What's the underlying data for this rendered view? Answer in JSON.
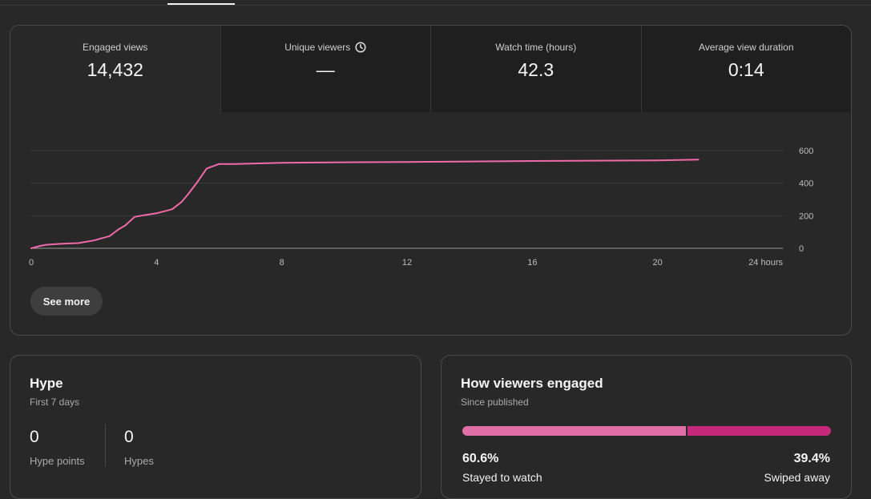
{
  "metrics": [
    {
      "label": "Engaged views",
      "value": "14,432"
    },
    {
      "label": "Unique viewers",
      "value": "—",
      "icon": "clock-icon"
    },
    {
      "label": "Watch time (hours)",
      "value": "42.3"
    },
    {
      "label": "Average view duration",
      "value": "0:14"
    }
  ],
  "chart_data": {
    "type": "line",
    "x_ticks": [
      "0",
      "4",
      "8",
      "12",
      "16",
      "20",
      "24 hours"
    ],
    "y_ticks": [
      "600",
      "400",
      "200",
      "0"
    ],
    "xlim": [
      0,
      24
    ],
    "ylim": [
      0,
      600
    ],
    "grid": true,
    "series": [
      {
        "color": "#f06aa9",
        "x": [
          0,
          0.3,
          0.5,
          1,
          1.5,
          2,
          2.5,
          2.8,
          3,
          3.3,
          3.6,
          4,
          4.5,
          4.8,
          5,
          5.3,
          5.6,
          6,
          6.5,
          7,
          8,
          10,
          12,
          14,
          16,
          18,
          20,
          21.3
        ],
        "y": [
          0,
          15,
          22,
          28,
          32,
          48,
          75,
          118,
          140,
          193,
          203,
          215,
          240,
          285,
          330,
          405,
          490,
          518,
          518,
          520,
          525,
          528,
          530,
          533,
          536,
          538,
          540,
          545
        ]
      }
    ]
  },
  "see_more_label": "See more",
  "hype": {
    "title": "Hype",
    "subtitle": "First 7 days",
    "stats": [
      {
        "value": "0",
        "label": "Hype points"
      },
      {
        "value": "0",
        "label": "Hypes"
      }
    ]
  },
  "engagement": {
    "title": "How viewers engaged",
    "subtitle": "Since published",
    "stayed_fraction": 0.606,
    "stayed_pct": "60.6%",
    "stayed_label": "Stayed to watch",
    "swiped_pct": "39.4%",
    "swiped_label": "Swiped away",
    "colors": {
      "stayed": "#e06fa8",
      "swiped": "#c52a7a"
    }
  }
}
